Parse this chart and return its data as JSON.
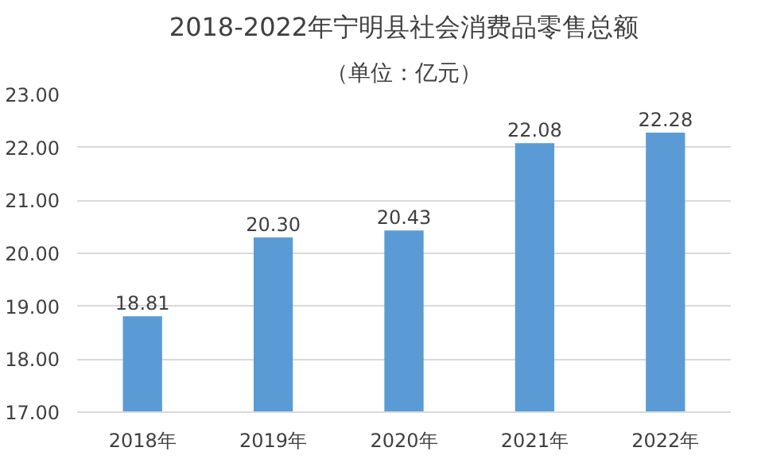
{
  "chart_data": {
    "type": "bar",
    "title": "2018-2022年宁明县社会消费品零售总额",
    "subtitle": "（单位：亿元）",
    "categories": [
      "2018年",
      "2019年",
      "2020年",
      "2021年",
      "2022年"
    ],
    "values": [
      18.81,
      20.3,
      20.43,
      22.08,
      22.28
    ],
    "value_labels": [
      "18.81",
      "20.30",
      "20.43",
      "22.08",
      "22.28"
    ],
    "color": "#5b9bd5",
    "ylim": [
      17,
      23
    ],
    "yticks": [
      {
        "value": 17,
        "label": "17.00"
      },
      {
        "value": 18,
        "label": "18.00"
      },
      {
        "value": 19,
        "label": "19.00"
      },
      {
        "value": 20,
        "label": "20.00"
      },
      {
        "value": 21,
        "label": "21.00"
      },
      {
        "value": 22,
        "label": "22.00"
      },
      {
        "value": 23,
        "label": "23.00"
      }
    ],
    "grid": "y"
  }
}
